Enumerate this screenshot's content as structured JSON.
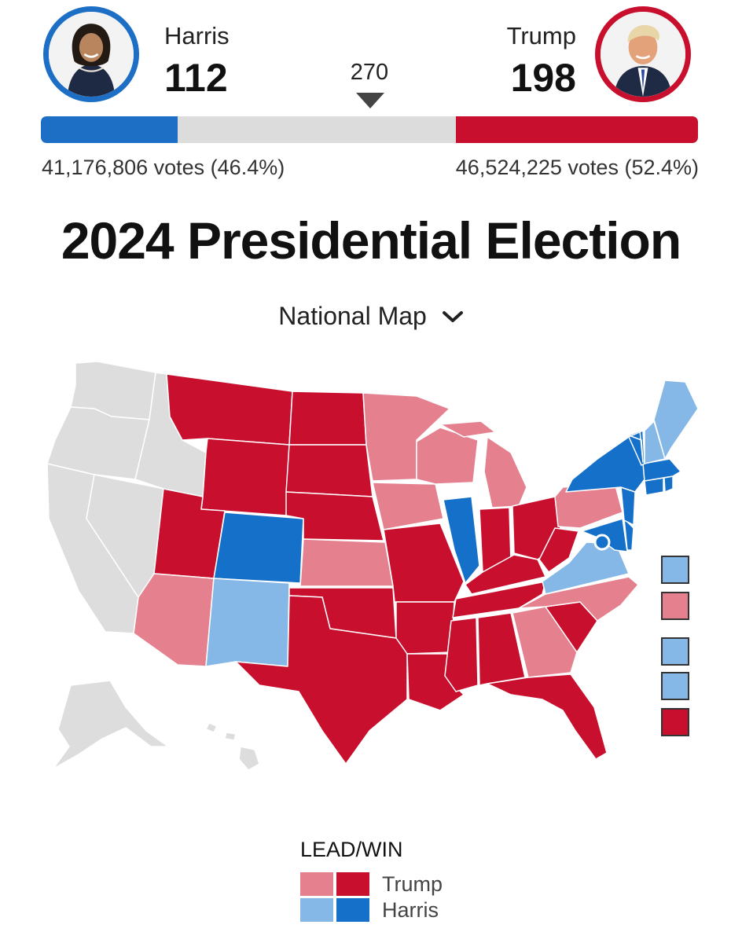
{
  "header": {
    "threshold_label": "270",
    "harris": {
      "name": "Harris",
      "electoral_votes": "112",
      "popular_votes": "41,176,806 votes (46.4%)",
      "color": "#1c6fc5",
      "photo_icon": "harris-portrait-icon"
    },
    "trump": {
      "name": "Trump",
      "electoral_votes": "198",
      "popular_votes": "46,524,225 votes (52.4%)",
      "color": "#c8102e",
      "photo_icon": "trump-portrait-icon"
    },
    "progress": {
      "total_electoral_votes": 538,
      "harris_electoral_votes": 112,
      "trump_electoral_votes": 198
    }
  },
  "title": "2024 Presidential Election",
  "map_selector": {
    "selected": "National Map",
    "icon": "chevron-down-icon"
  },
  "map": {
    "colors": {
      "trump_win": "#c8102e",
      "trump_lead": "#e5808f",
      "harris_win": "#1470c8",
      "harris_lead": "#85b8e6",
      "no_result": "#dddddd"
    },
    "states": {
      "WA": "no_result",
      "OR": "no_result",
      "CA": "no_result",
      "NV": "no_result",
      "ID": "no_result",
      "AK": "no_result",
      "HI": "no_result",
      "MT": "trump_win",
      "WY": "trump_win",
      "UT": "trump_win",
      "ND": "trump_win",
      "SD": "trump_win",
      "NE": "trump_win",
      "OK": "trump_win",
      "TX": "trump_win",
      "MO": "trump_win",
      "AR": "trump_win",
      "LA": "trump_win",
      "IN": "trump_win",
      "OH": "trump_win",
      "KY": "trump_win",
      "WV": "trump_win",
      "TN": "trump_win",
      "MS": "trump_win",
      "AL": "trump_win",
      "SC": "trump_win",
      "FL": "trump_win",
      "AZ": "trump_lead",
      "KS": "trump_lead",
      "MN": "trump_lead",
      "IA": "trump_lead",
      "WI": "trump_lead",
      "MI": "trump_lead",
      "PA": "trump_lead",
      "NC": "trump_lead",
      "GA": "trump_lead",
      "CO": "harris_win",
      "IL": "harris_win",
      "NY": "harris_win",
      "VT": "harris_win",
      "MA": "harris_win",
      "CT": "harris_win",
      "RI": "harris_win",
      "NJ": "harris_win",
      "DE": "harris_win",
      "MD": "harris_win",
      "NM": "harris_lead",
      "VA": "harris_lead",
      "NH": "harris_lead",
      "ME": "harris_lead"
    },
    "small_state_boxes": [
      "harris_lead",
      "trump_lead",
      "harris_lead",
      "harris_lead",
      "trump_win"
    ]
  },
  "legend": {
    "title": "LEAD/WIN",
    "rows": [
      {
        "label": "Trump",
        "lead_color": "#e5808f",
        "win_color": "#c8102e"
      },
      {
        "label": "Harris",
        "lead_color": "#85b8e6",
        "win_color": "#1470c8"
      }
    ]
  }
}
